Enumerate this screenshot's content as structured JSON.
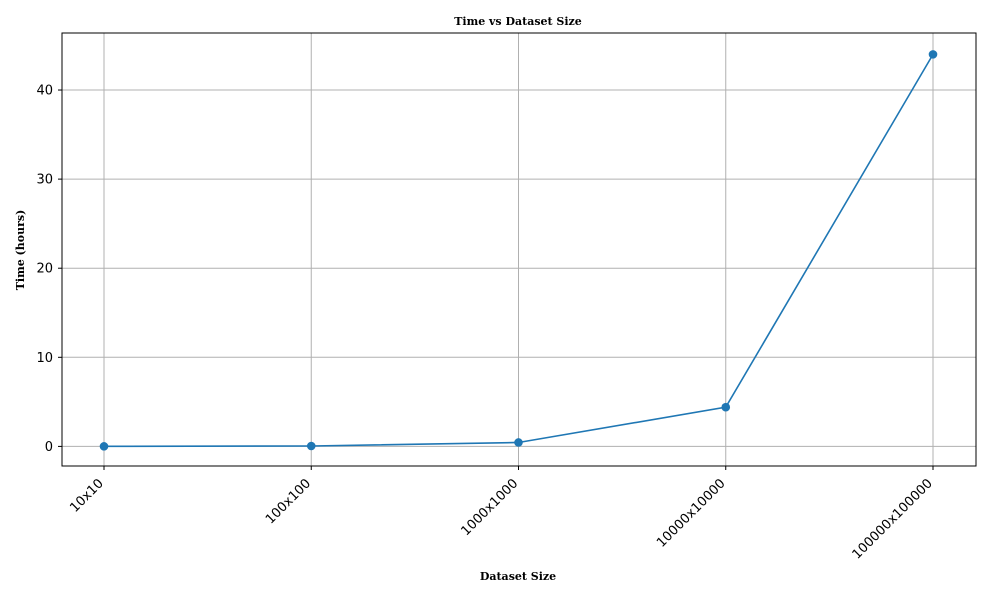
{
  "chart_data": {
    "type": "line",
    "title": "Time vs Dataset Size",
    "xlabel": "Dataset Size",
    "ylabel": "Time (hours)",
    "categories": [
      "10x10",
      "100x100",
      "1000x1000",
      "10000x10000",
      "100000x100000"
    ],
    "series": [
      {
        "values": [
          0.0044,
          0.044,
          0.44,
          4.4,
          44.0
        ],
        "color": "#1f77b4",
        "marker": "circle"
      }
    ],
    "ylim": [
      -2.2,
      46.4
    ],
    "yticks": [
      0,
      10,
      20,
      30,
      40
    ],
    "xtick_rotation": 45,
    "grid": true
  }
}
